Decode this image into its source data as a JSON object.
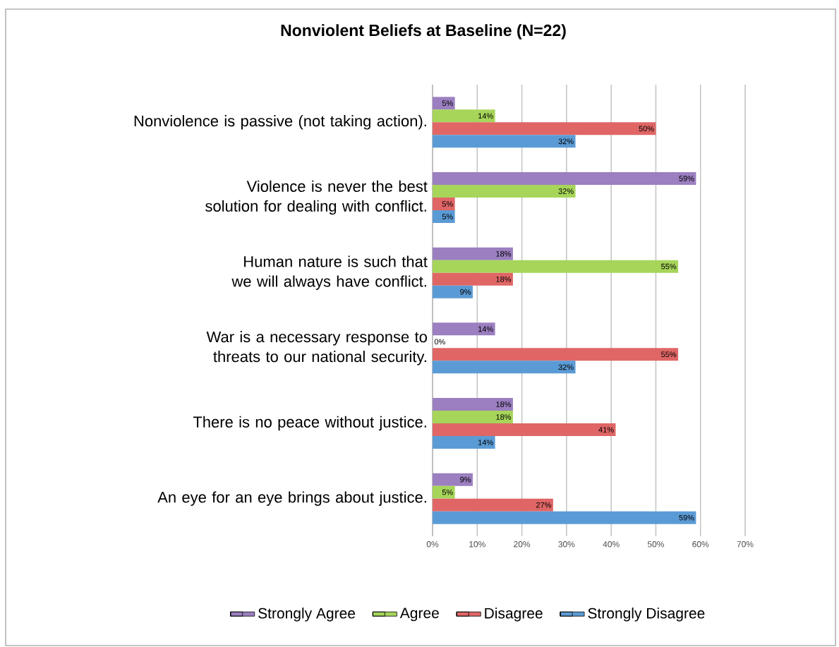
{
  "chart_data": {
    "type": "bar",
    "orientation": "horizontal",
    "title": "Nonviolent Beliefs at Baseline (N=22)",
    "categories": [
      "Nonviolence is passive (not taking action).",
      "Violence is never the best solution for dealing with conflict.",
      "Human nature is such that we will always have conflict.",
      "War is a necessary response to threats to our national security.",
      "There is no peace without justice.",
      "An eye for an eye brings about justice."
    ],
    "series": [
      {
        "name": "Strongly Agree",
        "color": "#9b7fc0",
        "values": [
          5,
          59,
          18,
          14,
          18,
          9
        ],
        "value_labels": [
          "5%",
          "59%",
          "18%",
          "14%",
          "18%",
          "9%"
        ]
      },
      {
        "name": "Agree",
        "color": "#a6d55a",
        "values": [
          14,
          32,
          55,
          0,
          18,
          5
        ],
        "value_labels": [
          "14%",
          "32%",
          "55%",
          "0%",
          "18%",
          "5%"
        ]
      },
      {
        "name": "Disagree",
        "color": "#e06666",
        "values": [
          50,
          5,
          18,
          55,
          41,
          27
        ],
        "value_labels": [
          "50%",
          "5%",
          "18%",
          "55%",
          "41%",
          "27%"
        ]
      },
      {
        "name": "Strongly Disagree",
        "color": "#5b9bd5",
        "values": [
          32,
          5,
          9,
          32,
          14,
          59
        ],
        "value_labels": [
          "32%",
          "5%",
          "9%",
          "32%",
          "14%",
          "59%"
        ]
      }
    ],
    "xlim": [
      0,
      70
    ],
    "xticks": [
      {
        "value": 0,
        "label": "0%"
      },
      {
        "value": 10,
        "label": "10%"
      },
      {
        "value": 20,
        "label": "20%"
      },
      {
        "value": 30,
        "label": "30%"
      },
      {
        "value": 40,
        "label": "40%"
      },
      {
        "value": 50,
        "label": "50%"
      },
      {
        "value": 60,
        "label": "60%"
      },
      {
        "value": 70,
        "label": "70%"
      }
    ],
    "grid": "x",
    "legend": "bottom"
  }
}
